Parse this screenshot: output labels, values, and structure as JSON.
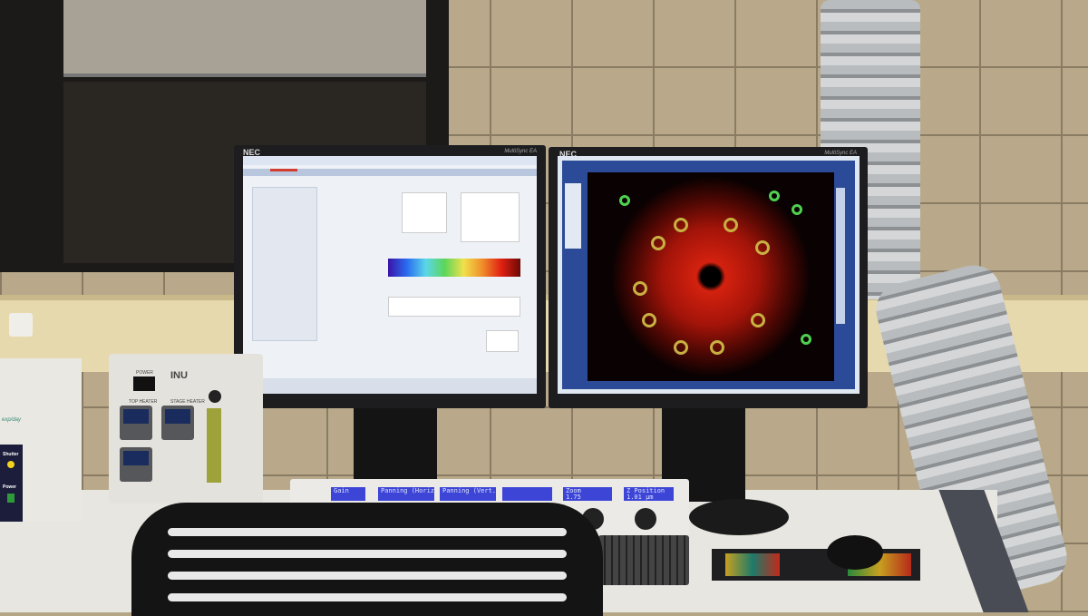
{
  "left_monitor": {
    "brand": "NEC",
    "model": "MultiSync EA"
  },
  "right_monitor": {
    "brand": "NEC",
    "model": "MultiSync EA"
  },
  "control_panel": {
    "displays": [
      {
        "label": "Gain",
        "value": ""
      },
      {
        "label": "Panning (Horiz.)",
        "value": ""
      },
      {
        "label": "Panning (Vert.)",
        "value": ""
      },
      {
        "label": "",
        "value": ""
      },
      {
        "label": "Zoom",
        "value": "1.75"
      },
      {
        "label": "Z Position",
        "value": "1.01 µm"
      }
    ]
  },
  "heater_controller": {
    "brand": "INU",
    "power_label": "POWER",
    "top_heater_label": "TOP HEATER",
    "stage_heater_label": "STAGE HEATER"
  },
  "shutter_box": {
    "shutter_label": "Shutter",
    "power_label": "Power",
    "note": "exp/day"
  },
  "colors": {
    "wall": "#b9a98a",
    "display_blue": "#3c45d6",
    "specimen_red": "#d4210f",
    "specimen_green": "#4fd04f"
  }
}
